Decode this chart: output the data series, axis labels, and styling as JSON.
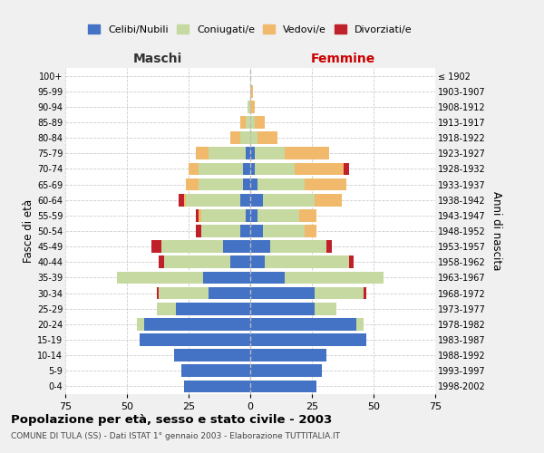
{
  "age_groups": [
    "0-4",
    "5-9",
    "10-14",
    "15-19",
    "20-24",
    "25-29",
    "30-34",
    "35-39",
    "40-44",
    "45-49",
    "50-54",
    "55-59",
    "60-64",
    "65-69",
    "70-74",
    "75-79",
    "80-84",
    "85-89",
    "90-94",
    "95-99",
    "100+"
  ],
  "birth_years": [
    "1998-2002",
    "1993-1997",
    "1988-1992",
    "1983-1987",
    "1978-1982",
    "1973-1977",
    "1968-1972",
    "1963-1967",
    "1958-1962",
    "1953-1957",
    "1948-1952",
    "1943-1947",
    "1938-1942",
    "1933-1937",
    "1928-1932",
    "1923-1927",
    "1918-1922",
    "1913-1917",
    "1908-1912",
    "1903-1907",
    "≤ 1902"
  ],
  "colors": {
    "celibi": "#4472c4",
    "coniugati": "#c5d9a0",
    "vedovi": "#f0b96b",
    "divorziati": "#c0202a"
  },
  "maschi": {
    "celibi": [
      27,
      28,
      31,
      45,
      43,
      30,
      17,
      19,
      8,
      11,
      4,
      2,
      4,
      3,
      3,
      2,
      0,
      0,
      0,
      0,
      0
    ],
    "coniugati": [
      0,
      0,
      0,
      0,
      3,
      8,
      20,
      35,
      27,
      25,
      16,
      18,
      22,
      18,
      18,
      15,
      4,
      2,
      1,
      0,
      0
    ],
    "vedovi": [
      0,
      0,
      0,
      0,
      0,
      0,
      0,
      0,
      0,
      0,
      0,
      1,
      1,
      5,
      4,
      5,
      4,
      2,
      0,
      0,
      0
    ],
    "divorziati": [
      0,
      0,
      0,
      0,
      0,
      0,
      1,
      0,
      2,
      4,
      2,
      1,
      2,
      0,
      0,
      0,
      0,
      0,
      0,
      0,
      0
    ]
  },
  "femmine": {
    "celibi": [
      27,
      29,
      31,
      47,
      43,
      26,
      26,
      14,
      6,
      8,
      5,
      3,
      5,
      3,
      2,
      2,
      0,
      0,
      0,
      0,
      0
    ],
    "coniugati": [
      0,
      0,
      0,
      0,
      3,
      9,
      20,
      40,
      34,
      23,
      17,
      17,
      21,
      19,
      16,
      12,
      3,
      2,
      0,
      0,
      0
    ],
    "vedovi": [
      0,
      0,
      0,
      0,
      0,
      0,
      0,
      0,
      0,
      0,
      5,
      7,
      11,
      17,
      20,
      18,
      8,
      4,
      2,
      1,
      0
    ],
    "divorziati": [
      0,
      0,
      0,
      0,
      0,
      0,
      1,
      0,
      2,
      2,
      0,
      0,
      0,
      0,
      2,
      0,
      0,
      0,
      0,
      0,
      0
    ]
  },
  "xlim": 75,
  "title": "Popolazione per età, sesso e stato civile - 2003",
  "subtitle": "COMUNE DI TULA (SS) - Dati ISTAT 1° gennaio 2003 - Elaborazione TUTTITALIA.IT",
  "ylabel_left": "Fasce di età",
  "ylabel_right": "Anni di nascita",
  "xlabel_left": "Maschi",
  "xlabel_right": "Femmine",
  "legend_labels": [
    "Celibi/Nubili",
    "Coniugati/e",
    "Vedovi/e",
    "Divorziati/e"
  ],
  "bg_color": "#f0f0f0",
  "plot_bg_color": "#ffffff"
}
